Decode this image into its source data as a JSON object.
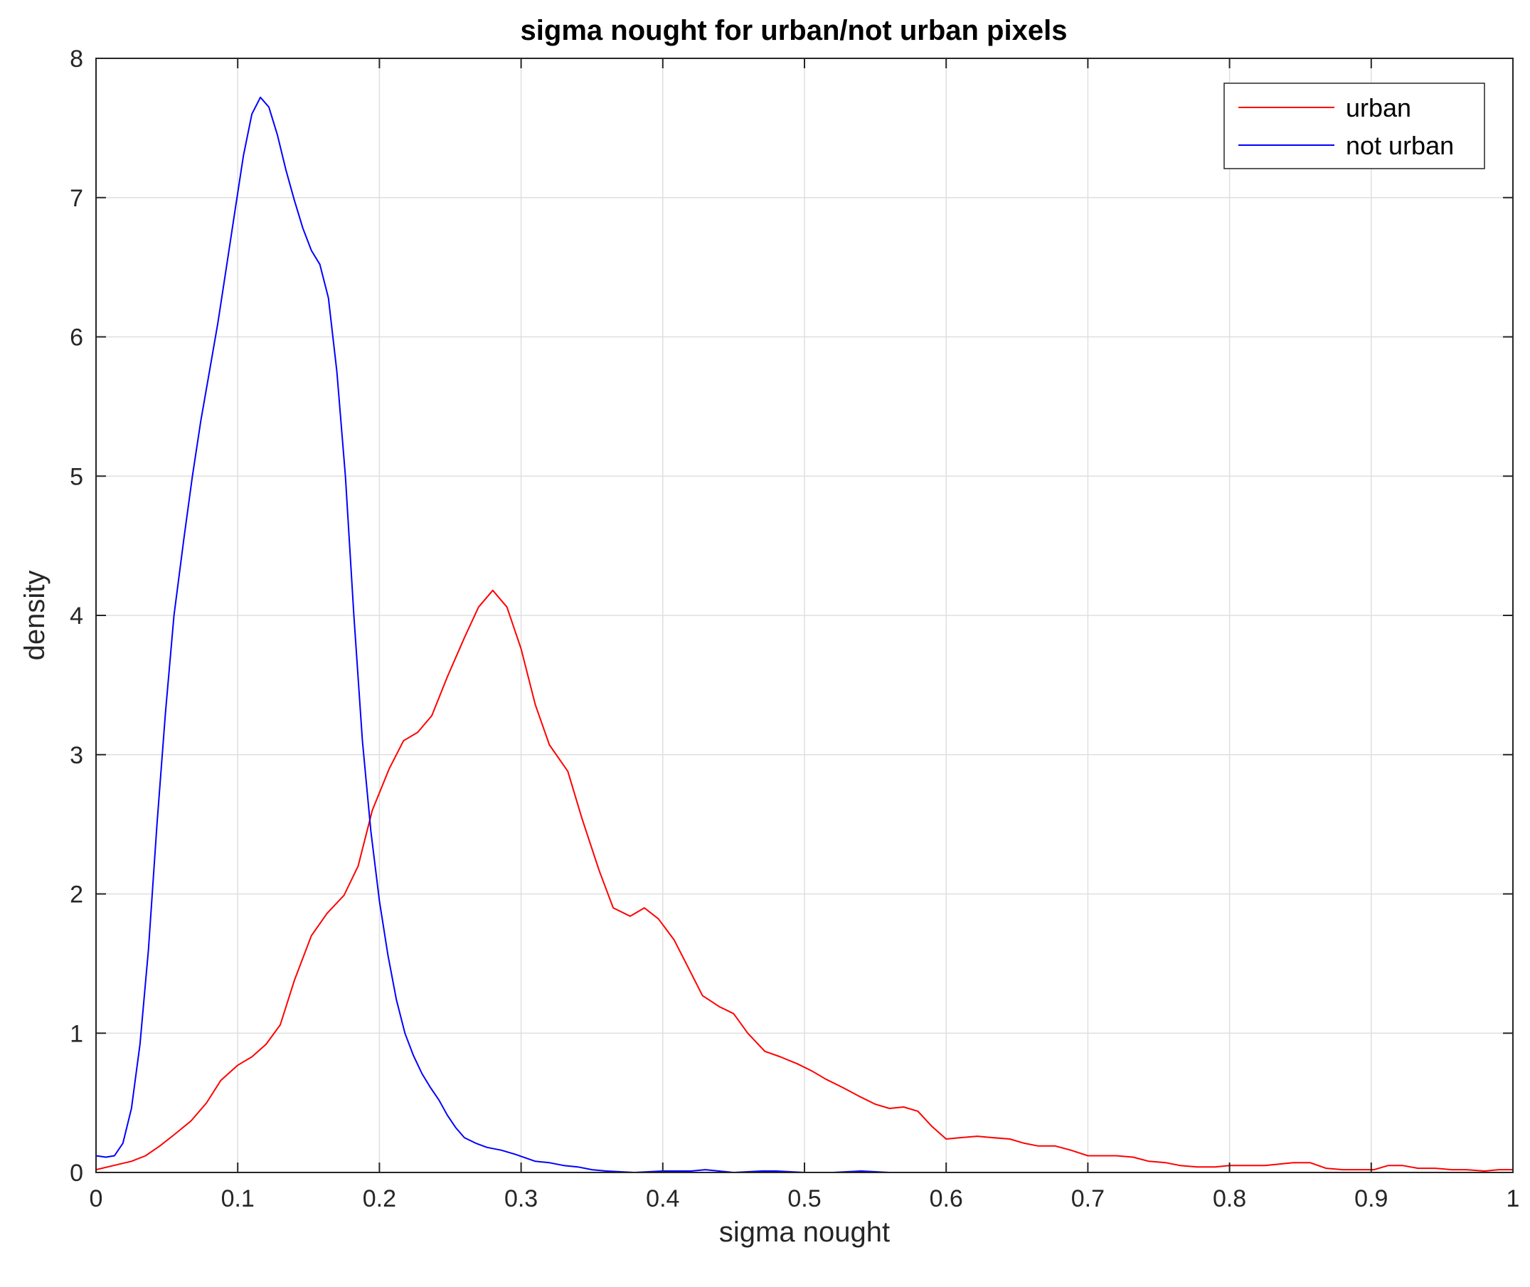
{
  "chart_data": {
    "type": "line",
    "title": "sigma nought for urban/not urban pixels",
    "xlabel": "sigma nought",
    "ylabel": "density",
    "xlim": [
      0,
      1
    ],
    "ylim": [
      0,
      8
    ],
    "xticks": [
      0,
      0.1,
      0.2,
      0.3,
      0.4,
      0.5,
      0.6,
      0.7,
      0.8,
      0.9,
      1
    ],
    "xtick_labels": [
      "0",
      "0.1",
      "0.2",
      "0.3",
      "0.4",
      "0.5",
      "0.6",
      "0.7",
      "0.8",
      "0.9",
      "1"
    ],
    "yticks": [
      0,
      1,
      2,
      3,
      4,
      5,
      6,
      7,
      8
    ],
    "ytick_labels": [
      "0",
      "1",
      "2",
      "3",
      "4",
      "5",
      "6",
      "7",
      "8"
    ],
    "grid": true,
    "legend": {
      "placement": "top-right",
      "entries": [
        "urban",
        "not urban"
      ]
    },
    "series": [
      {
        "name": "urban",
        "color": "#ff0000",
        "points": [
          [
            0,
            0.02
          ],
          [
            0.0125,
            0.05
          ],
          [
            0.025,
            0.08
          ],
          [
            0.035,
            0.12
          ],
          [
            0.045,
            0.19
          ],
          [
            0.055,
            0.27
          ],
          [
            0.067,
            0.37
          ],
          [
            0.078,
            0.5
          ],
          [
            0.088,
            0.66
          ],
          [
            0.1,
            0.77
          ],
          [
            0.11,
            0.83
          ],
          [
            0.12,
            0.92
          ],
          [
            0.13,
            1.06
          ],
          [
            0.14,
            1.38
          ],
          [
            0.152,
            1.7
          ],
          [
            0.163,
            1.86
          ],
          [
            0.175,
            1.99
          ],
          [
            0.185,
            2.2
          ],
          [
            0.195,
            2.6
          ],
          [
            0.207,
            2.9
          ],
          [
            0.217,
            3.1
          ],
          [
            0.227,
            3.16
          ],
          [
            0.237,
            3.28
          ],
          [
            0.248,
            3.56
          ],
          [
            0.26,
            3.84
          ],
          [
            0.27,
            4.06
          ],
          [
            0.28,
            4.18
          ],
          [
            0.29,
            4.06
          ],
          [
            0.3,
            3.76
          ],
          [
            0.31,
            3.36
          ],
          [
            0.32,
            3.07
          ],
          [
            0.333,
            2.88
          ],
          [
            0.343,
            2.54
          ],
          [
            0.355,
            2.17
          ],
          [
            0.365,
            1.9
          ],
          [
            0.377,
            1.84
          ],
          [
            0.387,
            1.9
          ],
          [
            0.397,
            1.82
          ],
          [
            0.408,
            1.67
          ],
          [
            0.418,
            1.47
          ],
          [
            0.428,
            1.27
          ],
          [
            0.44,
            1.19
          ],
          [
            0.45,
            1.14
          ],
          [
            0.46,
            1.0
          ],
          [
            0.472,
            0.87
          ],
          [
            0.483,
            0.83
          ],
          [
            0.495,
            0.78
          ],
          [
            0.505,
            0.73
          ],
          [
            0.515,
            0.67
          ],
          [
            0.527,
            0.61
          ],
          [
            0.538,
            0.55
          ],
          [
            0.55,
            0.49
          ],
          [
            0.56,
            0.46
          ],
          [
            0.57,
            0.47
          ],
          [
            0.58,
            0.44
          ],
          [
            0.59,
            0.33
          ],
          [
            0.6,
            0.24
          ],
          [
            0.61,
            0.25
          ],
          [
            0.622,
            0.26
          ],
          [
            0.633,
            0.25
          ],
          [
            0.645,
            0.24
          ],
          [
            0.655,
            0.21
          ],
          [
            0.665,
            0.19
          ],
          [
            0.677,
            0.19
          ],
          [
            0.688,
            0.16
          ],
          [
            0.7,
            0.12
          ],
          [
            0.71,
            0.12
          ],
          [
            0.72,
            0.12
          ],
          [
            0.732,
            0.11
          ],
          [
            0.743,
            0.08
          ],
          [
            0.755,
            0.07
          ],
          [
            0.765,
            0.05
          ],
          [
            0.777,
            0.04
          ],
          [
            0.79,
            0.04
          ],
          [
            0.8,
            0.05
          ],
          [
            0.812,
            0.05
          ],
          [
            0.825,
            0.05
          ],
          [
            0.835,
            0.06
          ],
          [
            0.845,
            0.07
          ],
          [
            0.857,
            0.07
          ],
          [
            0.868,
            0.03
          ],
          [
            0.88,
            0.02
          ],
          [
            0.892,
            0.02
          ],
          [
            0.902,
            0.02
          ],
          [
            0.912,
            0.05
          ],
          [
            0.922,
            0.05
          ],
          [
            0.933,
            0.03
          ],
          [
            0.945,
            0.03
          ],
          [
            0.957,
            0.02
          ],
          [
            0.967,
            0.02
          ],
          [
            0.98,
            0.01
          ],
          [
            0.99,
            0.02
          ],
          [
            1.0,
            0.02
          ]
        ]
      },
      {
        "name": "not urban",
        "color": "#0000ff",
        "points": [
          [
            0,
            0.12
          ],
          [
            0.007,
            0.11
          ],
          [
            0.013,
            0.12
          ],
          [
            0.019,
            0.21
          ],
          [
            0.025,
            0.46
          ],
          [
            0.031,
            0.92
          ],
          [
            0.037,
            1.6
          ],
          [
            0.043,
            2.5
          ],
          [
            0.049,
            3.3
          ],
          [
            0.055,
            4.0
          ],
          [
            0.062,
            4.55
          ],
          [
            0.068,
            5.0
          ],
          [
            0.074,
            5.4
          ],
          [
            0.08,
            5.75
          ],
          [
            0.086,
            6.1
          ],
          [
            0.092,
            6.5
          ],
          [
            0.098,
            6.9
          ],
          [
            0.104,
            7.3
          ],
          [
            0.11,
            7.6
          ],
          [
            0.116,
            7.72
          ],
          [
            0.122,
            7.65
          ],
          [
            0.128,
            7.45
          ],
          [
            0.134,
            7.2
          ],
          [
            0.14,
            6.98
          ],
          [
            0.146,
            6.78
          ],
          [
            0.152,
            6.62
          ],
          [
            0.158,
            6.52
          ],
          [
            0.164,
            6.28
          ],
          [
            0.17,
            5.75
          ],
          [
            0.176,
            5.0
          ],
          [
            0.182,
            4.0
          ],
          [
            0.188,
            3.1
          ],
          [
            0.194,
            2.45
          ],
          [
            0.2,
            1.95
          ],
          [
            0.206,
            1.56
          ],
          [
            0.212,
            1.24
          ],
          [
            0.218,
            1.0
          ],
          [
            0.224,
            0.84
          ],
          [
            0.23,
            0.71
          ],
          [
            0.236,
            0.61
          ],
          [
            0.242,
            0.52
          ],
          [
            0.248,
            0.41
          ],
          [
            0.254,
            0.32
          ],
          [
            0.26,
            0.25
          ],
          [
            0.268,
            0.21
          ],
          [
            0.276,
            0.18
          ],
          [
            0.286,
            0.16
          ],
          [
            0.296,
            0.13
          ],
          [
            0.31,
            0.08
          ],
          [
            0.32,
            0.07
          ],
          [
            0.33,
            0.05
          ],
          [
            0.34,
            0.04
          ],
          [
            0.35,
            0.02
          ],
          [
            0.36,
            0.01
          ],
          [
            0.38,
            0.0
          ],
          [
            0.4,
            0.01
          ],
          [
            0.42,
            0.01
          ],
          [
            0.43,
            0.02
          ],
          [
            0.45,
            0.0
          ],
          [
            0.47,
            0.01
          ],
          [
            0.48,
            0.01
          ],
          [
            0.5,
            0.0
          ],
          [
            0.52,
            0.0
          ],
          [
            0.54,
            0.01
          ],
          [
            0.56,
            0.0
          ],
          [
            0.575,
            0.0
          ]
        ]
      }
    ]
  }
}
